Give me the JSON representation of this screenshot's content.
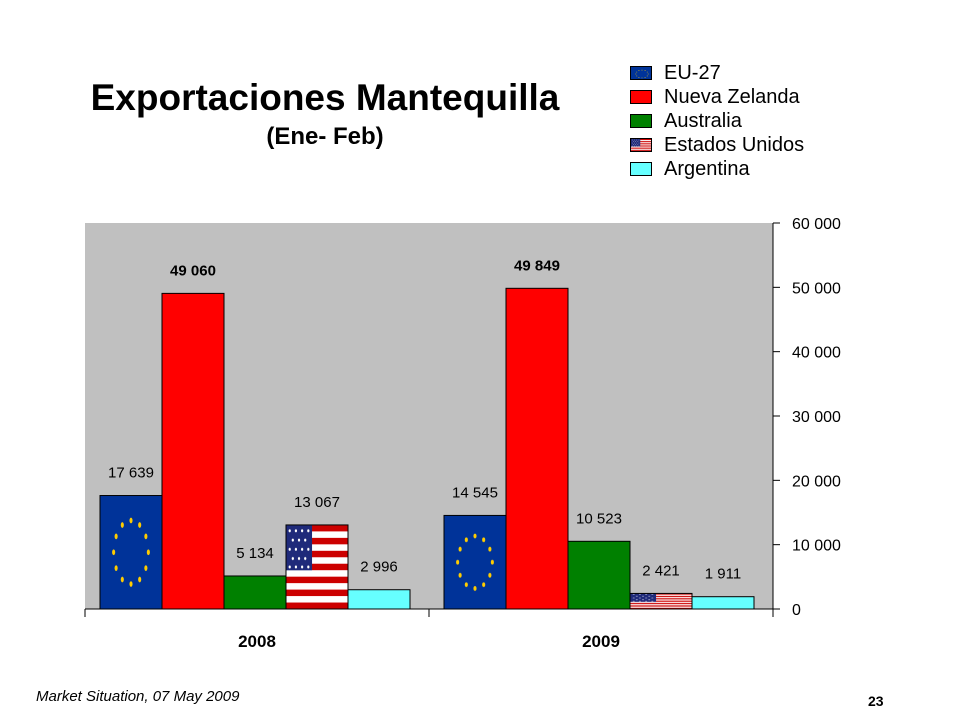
{
  "slide": {
    "title": "Exportaciones Mantequilla",
    "subtitle": "(Ene- Feb)",
    "footer": "Market Situation, 07 May 2009",
    "page_number": "23"
  },
  "legend": [
    {
      "label": "EU-27",
      "pattern": "eu-flag"
    },
    {
      "label": "Nueva Zelanda",
      "color": "#ff0000"
    },
    {
      "label": "Australia",
      "color": "#008000"
    },
    {
      "label": "Estados Unidos",
      "pattern": "us-flag"
    },
    {
      "label": "Argentina",
      "color": "#66ffff"
    }
  ],
  "chart_data": {
    "type": "bar",
    "title": "Exportaciones Mantequilla",
    "subtitle": "(Ene- Feb)",
    "categories": [
      "2008",
      "2009"
    ],
    "series": [
      {
        "name": "EU-27",
        "values": [
          17639,
          14545
        ],
        "labels": [
          "17 639",
          "14 545"
        ],
        "fill": "eu-flag"
      },
      {
        "name": "Nueva Zelanda",
        "values": [
          49060,
          49849
        ],
        "labels": [
          "49 060",
          "49 849"
        ],
        "color": "#ff0000",
        "bold_labels": true
      },
      {
        "name": "Australia",
        "values": [
          5134,
          10523
        ],
        "labels": [
          "5 134",
          "10 523"
        ],
        "color": "#008000"
      },
      {
        "name": "Estados Unidos",
        "values": [
          13067,
          2421
        ],
        "labels": [
          "13 067",
          "2 421"
        ],
        "fill": "us-flag"
      },
      {
        "name": "Argentina",
        "values": [
          2996,
          1911
        ],
        "labels": [
          "2 996",
          "1 911"
        ],
        "color": "#66ffff"
      }
    ],
    "y_axis": {
      "side": "right",
      "ylim": [
        0,
        60000
      ],
      "ticks": [
        0,
        10000,
        20000,
        30000,
        40000,
        50000,
        60000
      ],
      "tick_labels": [
        "0",
        "10 000",
        "20 000",
        "30 000",
        "40 000",
        "50 000",
        "60 000"
      ]
    },
    "grid": false,
    "legend_position": "top-right",
    "plot_background": "#c0c0c0"
  }
}
